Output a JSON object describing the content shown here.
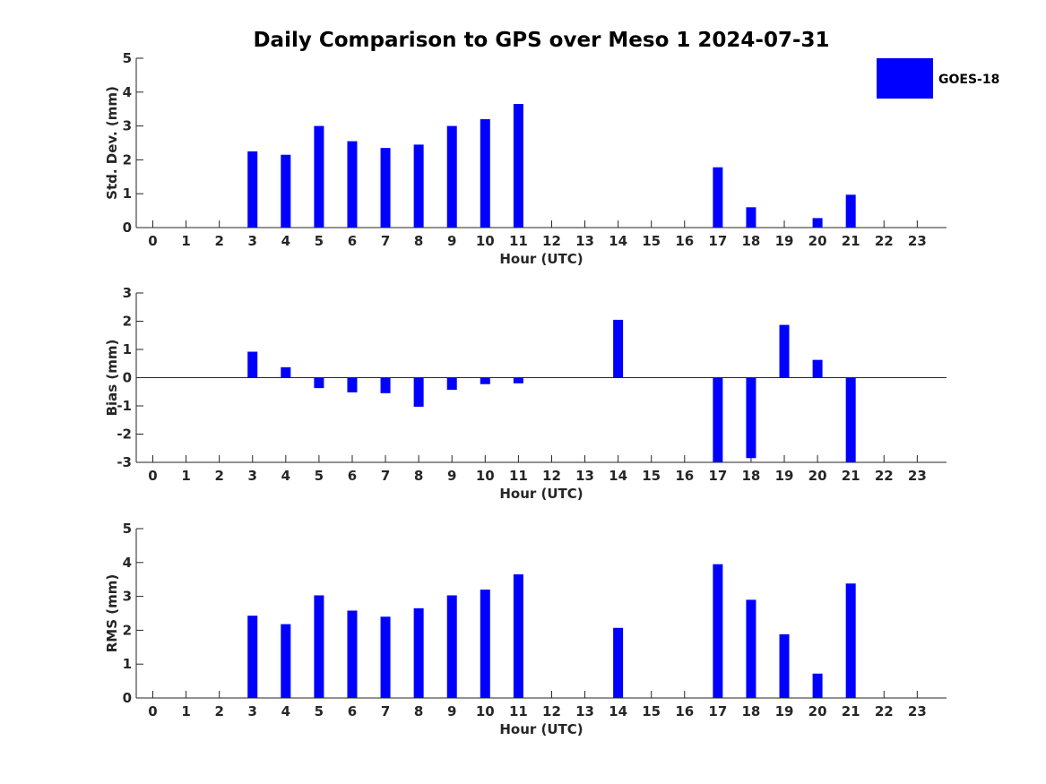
{
  "figure": {
    "title": "Daily Comparison to GPS over Meso 1 2024-07-31",
    "legend": {
      "label": "GOES-18",
      "color": "#0000ff",
      "placement": "top-right"
    }
  },
  "chart_data": [
    {
      "type": "bar",
      "series": [
        {
          "name": "GOES-18",
          "values": [
            null,
            null,
            null,
            2.25,
            2.15,
            3.0,
            2.55,
            2.35,
            2.45,
            3.0,
            3.2,
            3.65,
            null,
            null,
            null,
            null,
            null,
            1.78,
            0.6,
            null,
            0.28,
            0.97,
            null,
            null
          ]
        }
      ],
      "categories": [
        "0",
        "1",
        "2",
        "3",
        "4",
        "5",
        "6",
        "7",
        "8",
        "9",
        "10",
        "11",
        "12",
        "13",
        "14",
        "15",
        "16",
        "17",
        "18",
        "19",
        "20",
        "21",
        "22",
        "23"
      ],
      "xlabel": "Hour (UTC)",
      "ylabel": "Std. Dev. (mm)",
      "ylim": [
        0,
        5
      ],
      "yticks": [
        0,
        1,
        2,
        3,
        4,
        5
      ],
      "zero_line": false
    },
    {
      "type": "bar",
      "series": [
        {
          "name": "GOES-18",
          "values": [
            null,
            null,
            null,
            0.92,
            0.37,
            -0.37,
            -0.52,
            -0.55,
            -1.03,
            -0.43,
            -0.23,
            -0.2,
            null,
            null,
            2.05,
            null,
            null,
            -3.0,
            -2.85,
            1.87,
            0.63,
            -3.0,
            null,
            null
          ]
        }
      ],
      "categories": [
        "0",
        "1",
        "2",
        "3",
        "4",
        "5",
        "6",
        "7",
        "8",
        "9",
        "10",
        "11",
        "12",
        "13",
        "14",
        "15",
        "16",
        "17",
        "18",
        "19",
        "20",
        "21",
        "22",
        "23"
      ],
      "xlabel": "Hour (UTC)",
      "ylabel": "Bias (mm)",
      "ylim": [
        -3,
        3
      ],
      "yticks": [
        -3,
        -2,
        -1,
        0,
        1,
        2,
        3
      ],
      "zero_line": true
    },
    {
      "type": "bar",
      "series": [
        {
          "name": "GOES-18",
          "values": [
            null,
            null,
            null,
            2.43,
            2.18,
            3.03,
            2.58,
            2.4,
            2.65,
            3.03,
            3.2,
            3.65,
            null,
            null,
            2.07,
            null,
            null,
            3.95,
            2.9,
            1.88,
            0.72,
            3.38,
            null,
            null
          ]
        }
      ],
      "categories": [
        "0",
        "1",
        "2",
        "3",
        "4",
        "5",
        "6",
        "7",
        "8",
        "9",
        "10",
        "11",
        "12",
        "13",
        "14",
        "15",
        "16",
        "17",
        "18",
        "19",
        "20",
        "21",
        "22",
        "23"
      ],
      "xlabel": "Hour (UTC)",
      "ylabel": "RMS (mm)",
      "ylim": [
        0,
        5
      ],
      "yticks": [
        0,
        1,
        2,
        3,
        4,
        5
      ],
      "zero_line": false
    }
  ]
}
